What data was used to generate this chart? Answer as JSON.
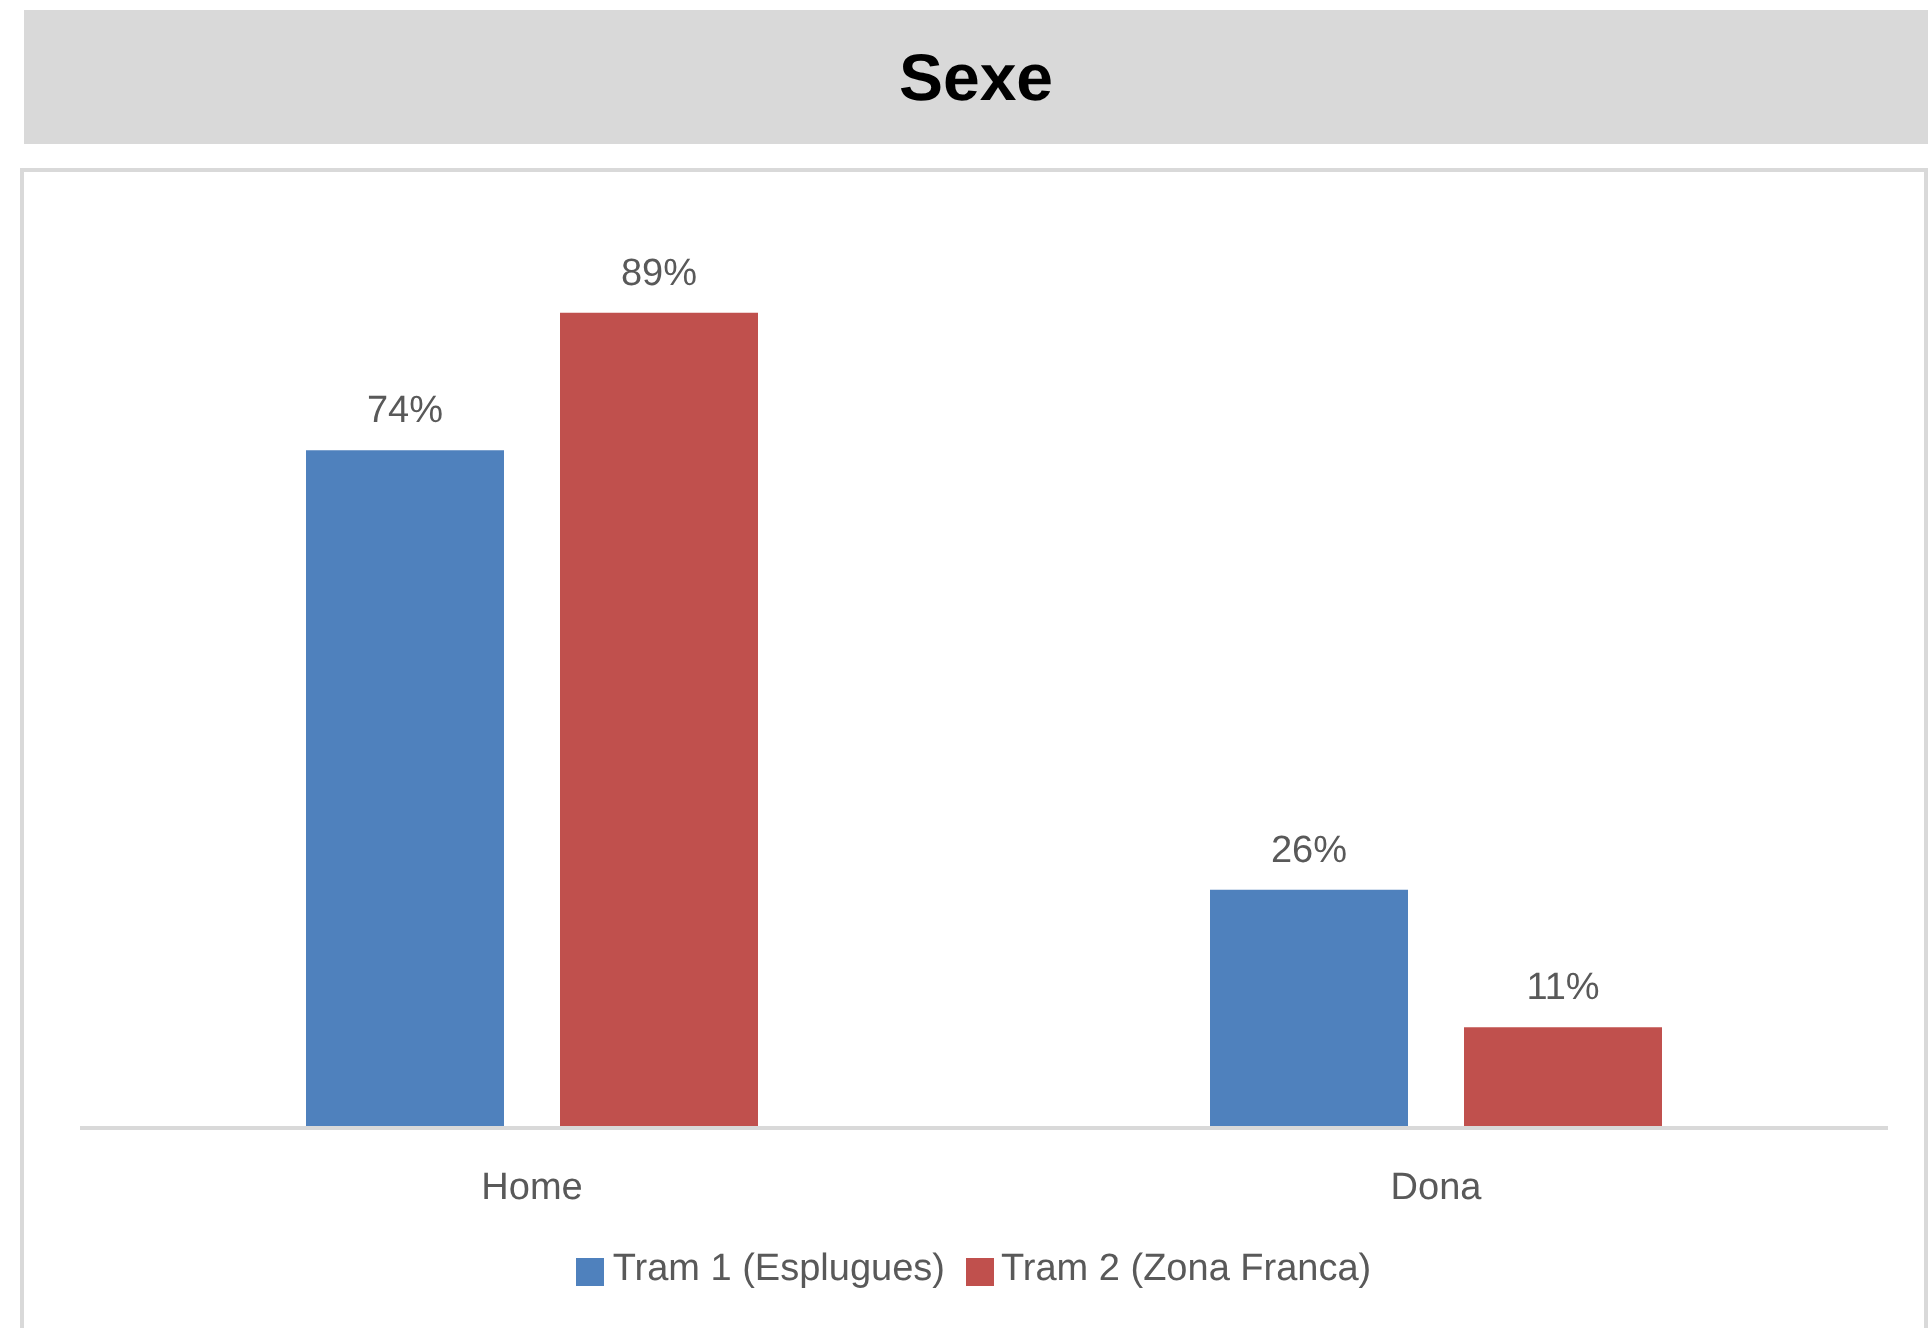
{
  "chart_data": {
    "type": "bar",
    "title": "Sexe",
    "categories": [
      "Home",
      "Dona"
    ],
    "series": [
      {
        "name": "Tram 1 (Esplugues)",
        "color": "#4f81bd",
        "values": [
          74,
          26
        ],
        "value_labels": [
          "74%",
          "26%"
        ]
      },
      {
        "name": "Tram 2 (Zona Franca)",
        "color": "#c0504d",
        "values": [
          89,
          11
        ],
        "value_labels": [
          "89%",
          "11%"
        ]
      }
    ],
    "legend": "bottom"
  }
}
